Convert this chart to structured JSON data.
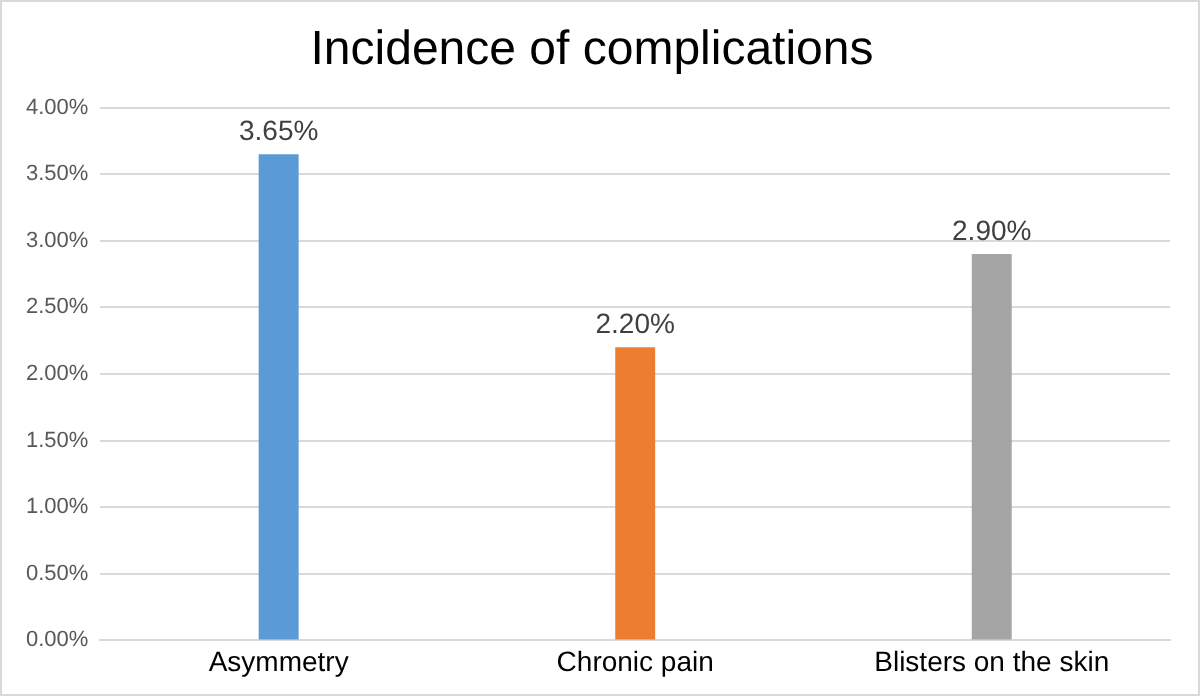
{
  "chart_data": {
    "type": "bar",
    "title": "Incidence of complications",
    "categories": [
      "Asymmetry",
      "Chronic pain",
      "Blisters on the skin"
    ],
    "values": [
      3.65,
      2.2,
      2.9
    ],
    "colors": [
      "#5b9bd5",
      "#ed7d31",
      "#a5a5a5"
    ],
    "value_labels": [
      "3.65%",
      "2.20%",
      "2.90%"
    ],
    "ylim": [
      0,
      4
    ],
    "yticks": [
      {
        "value": 0,
        "label": "0.00%"
      },
      {
        "value": 0.5,
        "label": "0.50%"
      },
      {
        "value": 1,
        "label": "1.00%"
      },
      {
        "value": 1.5,
        "label": "1.50%"
      },
      {
        "value": 2,
        "label": "2.00%"
      },
      {
        "value": 2.5,
        "label": "2.50%"
      },
      {
        "value": 3,
        "label": "3.00%"
      },
      {
        "value": 3.5,
        "label": "3.50%"
      },
      {
        "value": 4,
        "label": "4.00%"
      }
    ],
    "grid": "y",
    "legend": false
  }
}
